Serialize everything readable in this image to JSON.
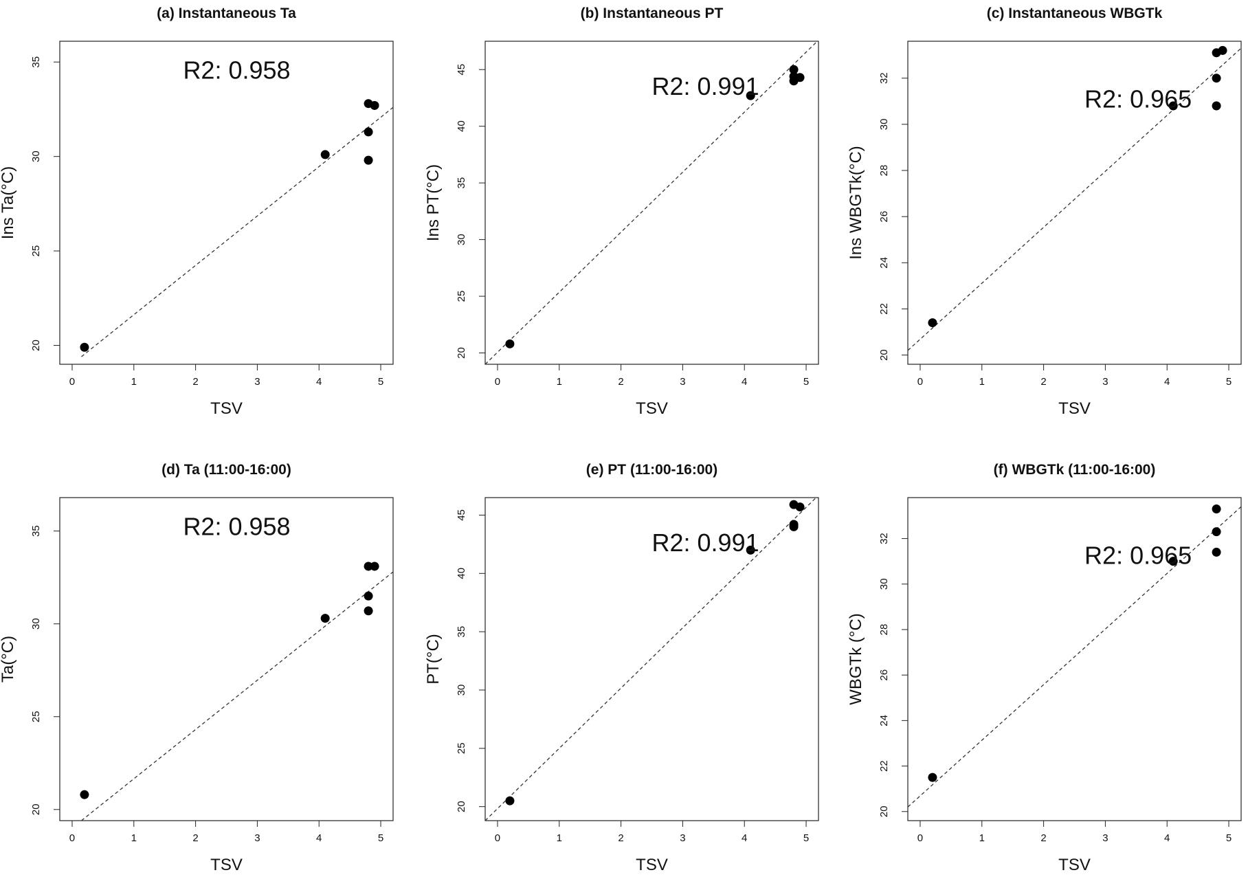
{
  "chart_data": [
    {
      "type": "scatter",
      "title": "(a) Instantaneous Ta",
      "xlabel": "TSV",
      "ylabel": "Ins Ta(°C)",
      "xlim": [
        -0.2,
        5.2
      ],
      "ylim": [
        19.0,
        36.1
      ],
      "xticks": [
        0,
        1,
        2,
        3,
        4,
        5
      ],
      "yticks": [
        20,
        25,
        30,
        35
      ],
      "annotation": "R2: 0.958",
      "points": [
        [
          0.2,
          19.9
        ],
        [
          4.1,
          30.1
        ],
        [
          4.8,
          29.8
        ],
        [
          4.8,
          31.3
        ],
        [
          4.8,
          32.8
        ],
        [
          4.9,
          32.7
        ]
      ],
      "fit_line": {
        "x": [
          0.15,
          5.2
        ],
        "y": [
          19.4,
          32.6
        ]
      }
    },
    {
      "type": "scatter",
      "title": "(b) Instantaneous  PT",
      "xlabel": "TSV",
      "ylabel": "Ins PT(°C)",
      "xlim": [
        -0.2,
        5.2
      ],
      "ylim": [
        19.0,
        47.5
      ],
      "xticks": [
        0,
        1,
        2,
        3,
        4,
        5
      ],
      "yticks": [
        20,
        25,
        30,
        35,
        40,
        45
      ],
      "annotation": "R2: 0.991",
      "points": [
        [
          0.2,
          20.8
        ],
        [
          4.1,
          42.7
        ],
        [
          4.8,
          45.0
        ],
        [
          4.8,
          44.4
        ],
        [
          4.8,
          44.0
        ],
        [
          4.9,
          44.3
        ]
      ],
      "fit_line": {
        "x": [
          -0.2,
          5.2
        ],
        "y": [
          19.0,
          47.6
        ]
      }
    },
    {
      "type": "scatter",
      "title": "(c) Instantaneous  WBGTk",
      "xlabel": "TSV",
      "ylabel": "Ins WBGTk(°C)",
      "xlim": [
        -0.2,
        5.2
      ],
      "ylim": [
        19.6,
        33.6
      ],
      "xticks": [
        0,
        1,
        2,
        3,
        4,
        5
      ],
      "yticks": [
        20,
        22,
        24,
        26,
        28,
        30,
        32
      ],
      "annotation": "R2: 0.965",
      "points": [
        [
          0.2,
          21.4
        ],
        [
          4.1,
          30.8
        ],
        [
          4.8,
          30.8
        ],
        [
          4.8,
          32.0
        ],
        [
          4.8,
          33.1
        ],
        [
          4.9,
          33.2
        ]
      ],
      "fit_line": {
        "x": [
          -0.2,
          5.2
        ],
        "y": [
          20.2,
          33.3
        ]
      }
    },
    {
      "type": "scatter",
      "title": "(d)  Ta (11:00-16:00)",
      "xlabel": "TSV",
      "ylabel": "Ta(°C)",
      "xlim": [
        -0.2,
        5.2
      ],
      "ylim": [
        19.4,
        36.8
      ],
      "xticks": [
        0,
        1,
        2,
        3,
        4,
        5
      ],
      "yticks": [
        20,
        25,
        30,
        35
      ],
      "annotation": "R2: 0.958",
      "points": [
        [
          0.2,
          20.8
        ],
        [
          4.1,
          30.3
        ],
        [
          4.8,
          30.7
        ],
        [
          4.8,
          31.5
        ],
        [
          4.8,
          33.1
        ],
        [
          4.9,
          33.1
        ]
      ],
      "fit_line": {
        "x": [
          0.15,
          5.2
        ],
        "y": [
          19.4,
          32.8
        ]
      }
    },
    {
      "type": "scatter",
      "title": "(e)  PT (11:00-16:00)",
      "xlabel": "TSV",
      "ylabel": "PT(°C)",
      "xlim": [
        -0.2,
        5.2
      ],
      "ylim": [
        18.8,
        46.5
      ],
      "xticks": [
        0,
        1,
        2,
        3,
        4,
        5
      ],
      "yticks": [
        20,
        25,
        30,
        35,
        40,
        45
      ],
      "annotation": "R2: 0.991",
      "points": [
        [
          0.2,
          20.5
        ],
        [
          4.1,
          42.0
        ],
        [
          4.8,
          45.9
        ],
        [
          4.8,
          44.2
        ],
        [
          4.8,
          44.0
        ],
        [
          4.9,
          45.7
        ]
      ],
      "fit_line": {
        "x": [
          -0.2,
          5.2
        ],
        "y": [
          18.8,
          46.7
        ]
      }
    },
    {
      "type": "scatter",
      "title": "(f)  WBGTk (11:00-16:00)",
      "xlabel": "TSV",
      "ylabel": "WBGTk (°C)",
      "xlim": [
        -0.2,
        5.2
      ],
      "ylim": [
        19.6,
        33.8
      ],
      "xticks": [
        0,
        1,
        2,
        3,
        4,
        5
      ],
      "yticks": [
        20,
        22,
        24,
        26,
        28,
        30,
        32
      ],
      "annotation": "R2: 0.965",
      "points": [
        [
          0.2,
          21.5
        ],
        [
          4.1,
          31.0
        ],
        [
          4.8,
          31.4
        ],
        [
          4.8,
          32.3
        ],
        [
          4.8,
          33.3
        ]
      ],
      "fit_line": {
        "x": [
          -0.2,
          5.2
        ],
        "y": [
          20.2,
          33.4
        ]
      }
    }
  ],
  "panel_labels": {
    "a": "(a) Instantaneous Ta",
    "b": "(b) Instantaneous  PT",
    "c": "(c) Instantaneous  WBGTk",
    "d": "(d)  Ta (11:00-16:00)",
    "e": "(e)  PT (11:00-16:00)",
    "f": "(f)  WBGTk (11:00-16:00)"
  },
  "colors": {
    "points": "#000000",
    "fit_line": "#333333",
    "frame": "#222222"
  }
}
